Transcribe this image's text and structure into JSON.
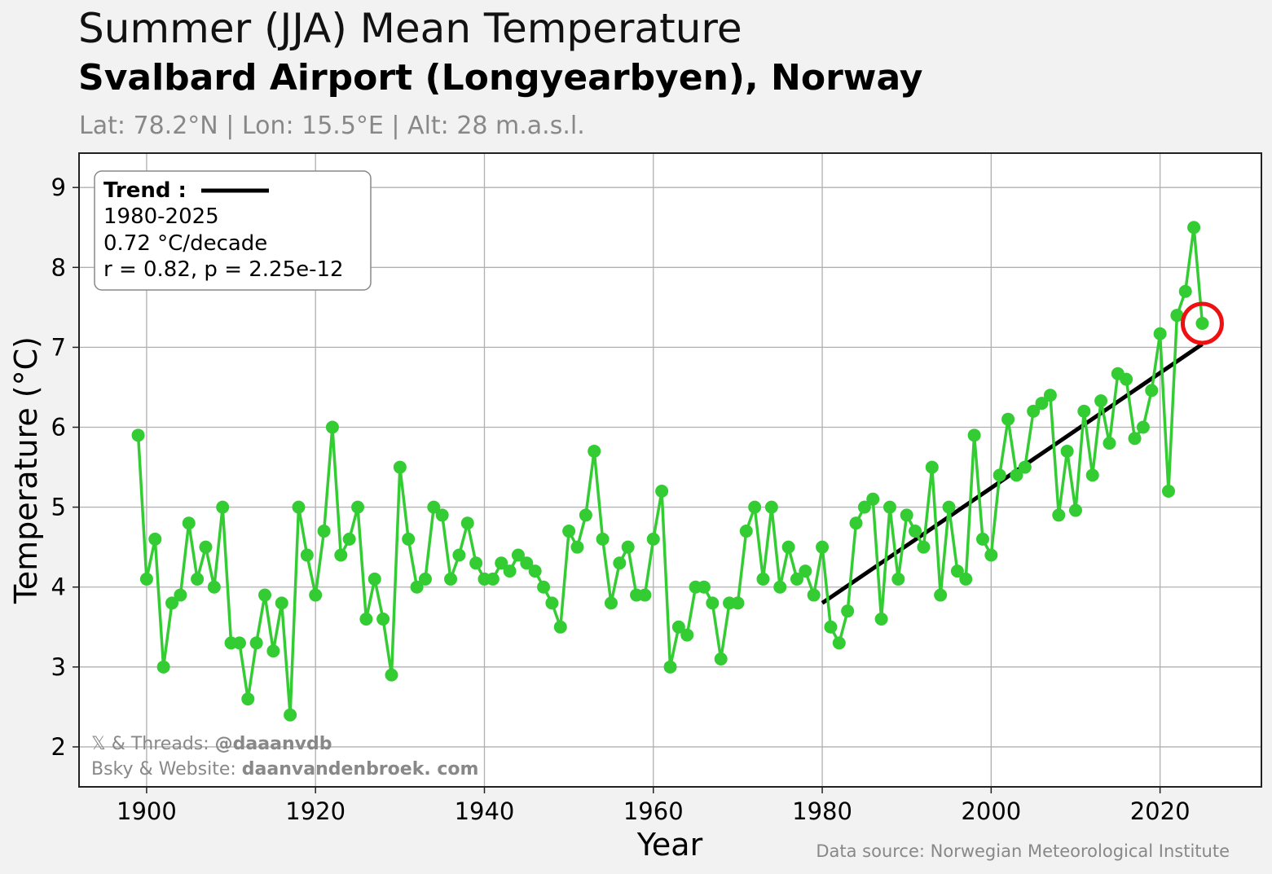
{
  "header": {
    "title": "Summer (JJA) Mean Temperature",
    "subtitle": "Svalbard Airport (Longyearbyen), Norway",
    "location": "Lat: 78.2°N | Lon: 15.5°E | Alt: 28 m.a.s.l."
  },
  "legend": {
    "trend_label": "Trend :",
    "period": "1980-2025",
    "rate": "0.72 °C/decade",
    "stats": "r = 0.82, p = 2.25e-12",
    "placement": "top-left"
  },
  "credits": {
    "line1_prefix": "𝕏 & Threads: ",
    "line1_handle": "@daaanvdb",
    "line2_prefix": "Bsky & Website: ",
    "line2_site": "daanvandenbroek. com"
  },
  "source": "Data source: Norwegian Meteorological Institute",
  "colors": {
    "series": "#33cc33",
    "trend": "#000000",
    "highlight": "#ee1111",
    "grid": "#b0b0b0",
    "background": "#f2f2f2"
  },
  "chart_data": {
    "type": "line",
    "xlabel": "Year",
    "ylabel": "Temperature (°C)",
    "xlim": [
      1892,
      2032
    ],
    "ylim": [
      1.5,
      9.43
    ],
    "xticks": [
      1900,
      1920,
      1940,
      1960,
      1980,
      2000,
      2020
    ],
    "yticks": [
      2,
      3,
      4,
      5,
      6,
      7,
      8,
      9
    ],
    "grid": true,
    "series": [
      {
        "x": [
          1899,
          1900,
          1901,
          1902,
          1903,
          1904,
          1905,
          1906,
          1907,
          1908,
          1909,
          1910,
          1911,
          1912,
          1913,
          1914,
          1915,
          1916,
          1917,
          1918,
          1919,
          1920,
          1921,
          1922,
          1923,
          1924,
          1925,
          1926,
          1927,
          1928,
          1929,
          1930,
          1931,
          1932,
          1933,
          1934,
          1935,
          1936,
          1937,
          1938,
          1939,
          1940,
          1941,
          1942,
          1943,
          1944,
          1945,
          1946,
          1947,
          1948,
          1949,
          1950,
          1951,
          1952,
          1953,
          1954,
          1955,
          1956,
          1957,
          1958,
          1959,
          1960,
          1961,
          1962,
          1963,
          1964,
          1965,
          1966,
          1967,
          1968,
          1969,
          1970,
          1971,
          1972,
          1973,
          1974,
          1975,
          1976,
          1977,
          1978,
          1979,
          1980,
          1981,
          1982,
          1983,
          1984,
          1985,
          1986,
          1987,
          1988,
          1989,
          1990,
          1991,
          1992,
          1993,
          1994,
          1995,
          1996,
          1997,
          1998,
          1999,
          2000,
          2001,
          2002,
          2003,
          2004,
          2005,
          2006,
          2007,
          2008,
          2009,
          2010,
          2011,
          2012,
          2013,
          2014,
          2015,
          2016,
          2017,
          2018,
          2019,
          2020,
          2021,
          2022,
          2023,
          2024,
          2025
        ],
        "values": [
          5.9,
          4.1,
          4.6,
          3.0,
          3.8,
          3.9,
          4.8,
          4.1,
          4.5,
          4.0,
          5.0,
          3.3,
          3.3,
          2.6,
          3.3,
          3.9,
          3.2,
          3.8,
          2.4,
          5.0,
          4.4,
          3.9,
          4.7,
          6.0,
          4.4,
          4.6,
          5.0,
          3.6,
          4.1,
          3.6,
          2.9,
          5.5,
          4.6,
          4.0,
          4.1,
          5.0,
          4.9,
          4.1,
          4.4,
          4.8,
          4.3,
          4.1,
          4.1,
          4.3,
          4.2,
          4.4,
          4.3,
          4.2,
          4.0,
          3.8,
          3.5,
          4.7,
          4.5,
          4.9,
          5.7,
          4.6,
          3.8,
          4.3,
          4.5,
          3.9,
          3.9,
          4.6,
          5.2,
          3.0,
          3.5,
          3.4,
          4.0,
          4.0,
          3.8,
          3.1,
          3.8,
          3.8,
          4.7,
          5.0,
          4.1,
          5.0,
          4.0,
          4.5,
          4.1,
          4.2,
          3.9,
          4.5,
          3.5,
          3.3,
          3.7,
          4.8,
          5.0,
          5.1,
          3.6,
          5.0,
          4.1,
          4.9,
          4.7,
          4.5,
          5.5,
          3.9,
          5.0,
          4.2,
          4.1,
          5.9,
          4.6,
          4.4,
          5.4,
          6.1,
          5.4,
          5.5,
          6.2,
          6.3,
          6.4,
          4.9,
          5.7,
          4.96,
          6.2,
          5.4,
          6.33,
          5.8,
          6.67,
          6.6,
          5.86,
          6.0,
          6.46,
          7.17,
          5.2,
          7.4,
          7.7,
          8.5,
          7.3
        ]
      }
    ],
    "trend": {
      "x": [
        1980,
        2025
      ],
      "y": [
        3.8,
        7.04
      ]
    },
    "highlight": {
      "x": 2025,
      "y": 7.3
    }
  }
}
